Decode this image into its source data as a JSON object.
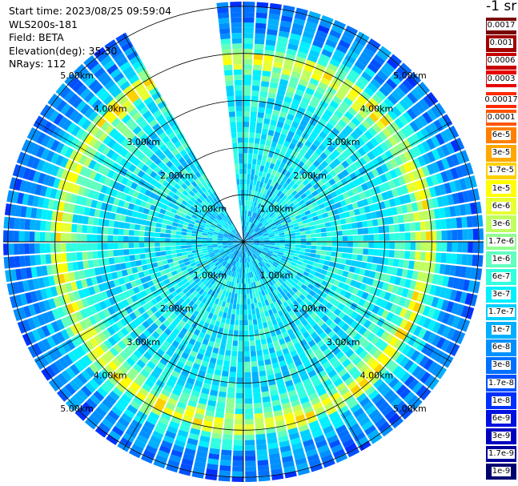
{
  "info": {
    "start_time": "Start time: 2023/08/25 09:59:04",
    "instrument": "WLS200s-181",
    "field": "Field: BETA",
    "elevation": "Elevation(deg): 35.30",
    "nrays": "NRays: 112"
  },
  "colorbar": {
    "title": "-1 sr",
    "items": [
      {
        "label": "0.0017",
        "color": "#7a0000"
      },
      {
        "label": "0.001",
        "color": "#a00000"
      },
      {
        "label": "0.0006",
        "color": "#c80000"
      },
      {
        "label": "0.0003",
        "color": "#e60000"
      },
      {
        "label": "0.00017",
        "color": "#ff2a00"
      },
      {
        "label": "0.0001",
        "color": "#ff5500"
      },
      {
        "label": "6e-5",
        "color": "#ff8000"
      },
      {
        "label": "3e-5",
        "color": "#ffa800"
      },
      {
        "label": "1.7e-5",
        "color": "#ffd000"
      },
      {
        "label": "1e-5",
        "color": "#ffff00"
      },
      {
        "label": "6e-6",
        "color": "#e8ff30"
      },
      {
        "label": "3e-6",
        "color": "#c0ff60"
      },
      {
        "label": "1.7e-6",
        "color": "#90ff90"
      },
      {
        "label": "1e-6",
        "color": "#60ffc0"
      },
      {
        "label": "6e-7",
        "color": "#30ffe0"
      },
      {
        "label": "3e-7",
        "color": "#00f0ff"
      },
      {
        "label": "1.7e-7",
        "color": "#00d0ff"
      },
      {
        "label": "1e-7",
        "color": "#00b0ff"
      },
      {
        "label": "6e-8",
        "color": "#0090ff"
      },
      {
        "label": "3e-8",
        "color": "#0070ff"
      },
      {
        "label": "1.7e-8",
        "color": "#0050ff"
      },
      {
        "label": "1e-8",
        "color": "#0030ff"
      },
      {
        "label": "6e-9",
        "color": "#0010e0"
      },
      {
        "label": "3e-9",
        "color": "#0000c0"
      },
      {
        "label": "1.7e-9",
        "color": "#00009a"
      },
      {
        "label": "1e-9",
        "color": "#000070"
      }
    ]
  },
  "chart_data": {
    "type": "heatmap",
    "projection": "polar",
    "title": "",
    "field": "BETA",
    "units": "-1 sr",
    "rays": 112,
    "elevation_deg": 35.3,
    "range_rings_km": [
      1.0,
      2.0,
      3.0,
      4.0,
      5.0
    ],
    "ring_labels": [
      "1.00km",
      "2.00km",
      "3.00km",
      "4.00km",
      "5.00km"
    ],
    "max_range_km": 5.1,
    "missing_azimuth_sector_deg": [
      330,
      352
    ],
    "radial_profile": [
      {
        "range_km": 0.1,
        "value": 1e-07
      },
      {
        "range_km": 1.0,
        "value": 3e-07
      },
      {
        "range_km": 2.0,
        "value": 3e-07
      },
      {
        "range_km": 3.0,
        "value": 3e-07
      },
      {
        "range_km": 3.6,
        "value": 6e-07
      },
      {
        "range_km": 3.9,
        "value": 1e-05
      },
      {
        "range_km": 4.2,
        "value": 3e-07
      },
      {
        "range_km": 4.6,
        "value": 6e-08
      },
      {
        "range_km": 5.0,
        "value": 3e-08
      }
    ]
  }
}
